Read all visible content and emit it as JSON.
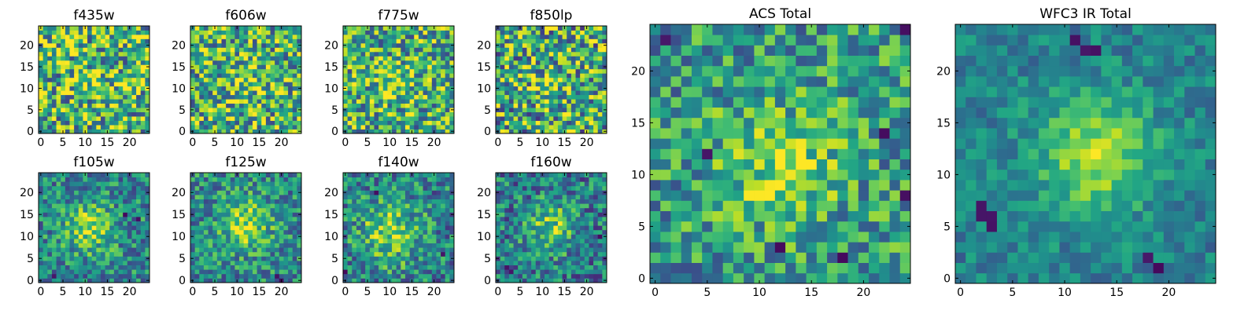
{
  "chart_data": {
    "type": "heatmap",
    "colormap": "viridis",
    "grid": false,
    "legend": "none",
    "panels": [
      {
        "title": "f435w",
        "grid_size": 25,
        "xticks": [
          0,
          5,
          10,
          15,
          20
        ],
        "yticks": [
          0,
          5,
          10,
          15,
          20
        ],
        "xlim": [
          -0.5,
          24.5
        ],
        "ylim": [
          -0.5,
          24.5
        ],
        "center": [
          12,
          12
        ],
        "blob_sigma": 3,
        "blob_strength": 0.1,
        "noise": 0.45,
        "base": 0.66,
        "seed": 11,
        "dark_spots": []
      },
      {
        "title": "f606w",
        "grid_size": 25,
        "xticks": [
          0,
          5,
          10,
          15,
          20
        ],
        "yticks": [
          0,
          5,
          10,
          15,
          20
        ],
        "xlim": [
          -0.5,
          24.5
        ],
        "ylim": [
          -0.5,
          24.5
        ],
        "center": [
          12,
          12
        ],
        "blob_sigma": 3,
        "blob_strength": 0.16,
        "noise": 0.42,
        "base": 0.64,
        "seed": 23,
        "dark_spots": []
      },
      {
        "title": "f775w",
        "grid_size": 25,
        "xticks": [
          0,
          5,
          10,
          15,
          20
        ],
        "yticks": [
          0,
          5,
          10,
          15,
          20
        ],
        "xlim": [
          -0.5,
          24.5
        ],
        "ylim": [
          -0.5,
          24.5
        ],
        "center": [
          11,
          11
        ],
        "blob_sigma": 3,
        "blob_strength": 0.2,
        "noise": 0.4,
        "base": 0.62,
        "seed": 37,
        "dark_spots": []
      },
      {
        "title": "f850lp",
        "grid_size": 25,
        "xticks": [
          0,
          5,
          10,
          15,
          20
        ],
        "yticks": [
          0,
          5,
          10,
          15,
          20
        ],
        "xlim": [
          -0.5,
          24.5
        ],
        "ylim": [
          -0.5,
          24.5
        ],
        "center": [
          12,
          11
        ],
        "blob_sigma": 3,
        "blob_strength": 0.16,
        "noise": 0.45,
        "base": 0.6,
        "seed": 41,
        "dark_spots": []
      },
      {
        "title": "f105w",
        "grid_size": 25,
        "xticks": [
          0,
          5,
          10,
          15,
          20
        ],
        "yticks": [
          0,
          5,
          10,
          15,
          20
        ],
        "xlim": [
          -0.5,
          24.5
        ],
        "ylim": [
          -0.5,
          24.5
        ],
        "center": [
          11,
          12
        ],
        "blob_sigma": 4,
        "blob_strength": 0.38,
        "noise": 0.28,
        "base": 0.46,
        "seed": 53,
        "dark_spots": [
          [
            19,
            15
          ],
          [
            22,
            14
          ],
          [
            3,
            1
          ]
        ]
      },
      {
        "title": "f125w",
        "grid_size": 25,
        "xticks": [
          0,
          5,
          10,
          15,
          20
        ],
        "yticks": [
          0,
          5,
          10,
          15,
          20
        ],
        "xlim": [
          -0.5,
          24.5
        ],
        "ylim": [
          -0.5,
          24.5
        ],
        "center": [
          12,
          13
        ],
        "blob_sigma": 4,
        "blob_strength": 0.38,
        "noise": 0.28,
        "base": 0.48,
        "seed": 67,
        "dark_spots": [
          [
            19,
            1
          ],
          [
            20,
            0
          ]
        ]
      },
      {
        "title": "f140w",
        "grid_size": 25,
        "xticks": [
          0,
          5,
          10,
          15,
          20
        ],
        "yticks": [
          0,
          5,
          10,
          15,
          20
        ],
        "xlim": [
          -0.5,
          24.5
        ],
        "ylim": [
          -0.5,
          24.5
        ],
        "center": [
          10,
          11
        ],
        "blob_sigma": 5,
        "blob_strength": 0.36,
        "noise": 0.3,
        "base": 0.44,
        "seed": 79,
        "dark_spots": [
          [
            7,
            20
          ],
          [
            0,
            2
          ],
          [
            22,
            6
          ]
        ]
      },
      {
        "title": "f160w",
        "grid_size": 25,
        "xticks": [
          0,
          5,
          10,
          15,
          20
        ],
        "yticks": [
          0,
          5,
          10,
          15,
          20
        ],
        "xlim": [
          -0.5,
          24.5
        ],
        "ylim": [
          -0.5,
          24.5
        ],
        "center": [
          12,
          12
        ],
        "blob_sigma": 4,
        "blob_strength": 0.36,
        "noise": 0.3,
        "base": 0.42,
        "seed": 83,
        "dark_spots": [
          [
            2,
            3
          ],
          [
            3,
            2
          ],
          [
            23,
            10
          ]
        ]
      },
      {
        "title": "ACS Total",
        "grid_size": 25,
        "xticks": [
          0,
          5,
          10,
          15,
          20
        ],
        "yticks": [
          0,
          5,
          10,
          15,
          20
        ],
        "xlim": [
          -0.5,
          24.5
        ],
        "ylim": [
          -0.5,
          24.5
        ],
        "center": [
          12,
          11
        ],
        "blob_sigma": 4,
        "blob_strength": 0.28,
        "noise": 0.3,
        "base": 0.54,
        "seed": 97,
        "dark_spots": [
          [
            1,
            23
          ],
          [
            5,
            12
          ],
          [
            12,
            3
          ],
          [
            18,
            2
          ],
          [
            24,
            24
          ],
          [
            22,
            14
          ],
          [
            24,
            8
          ]
        ]
      },
      {
        "title": "WFC3 IR Total",
        "grid_size": 25,
        "xticks": [
          0,
          5,
          10,
          15,
          20
        ],
        "yticks": [
          0,
          5,
          10,
          15,
          20
        ],
        "xlim": [
          -0.5,
          24.5
        ],
        "ylim": [
          -0.5,
          24.5
        ],
        "center": [
          13,
          12
        ],
        "blob_sigma": 4,
        "blob_strength": 0.45,
        "noise": 0.16,
        "base": 0.44,
        "seed": 101,
        "dark_spots": [
          [
            2,
            6
          ],
          [
            3,
            5
          ],
          [
            3,
            6
          ],
          [
            2,
            7
          ],
          [
            11,
            23
          ],
          [
            12,
            22
          ],
          [
            13,
            22
          ],
          [
            18,
            2
          ],
          [
            19,
            1
          ]
        ]
      }
    ]
  }
}
